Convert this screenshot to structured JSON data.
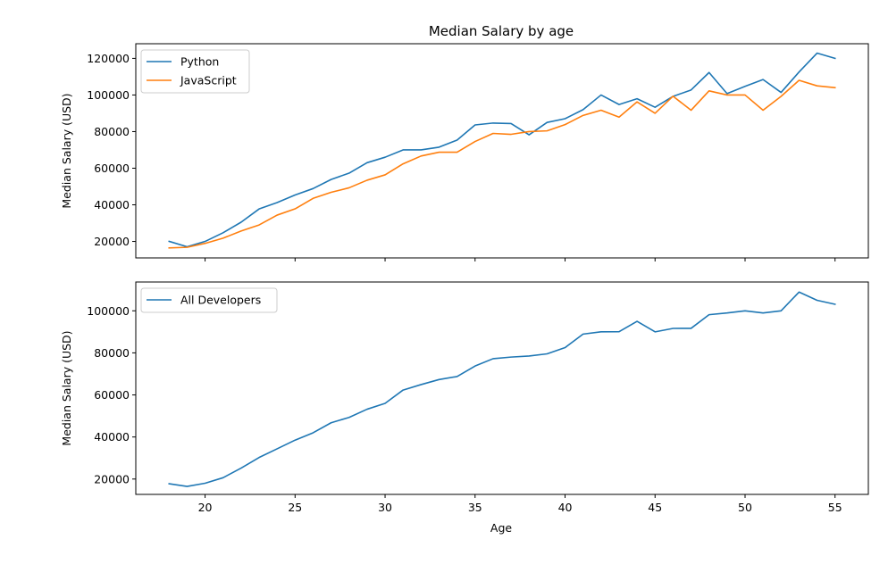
{
  "chart_data": [
    {
      "type": "line",
      "title": "Median Salary by age",
      "xlabel": "",
      "ylabel": "Median Salary (USD)",
      "xlim": [
        16.15,
        56.85
      ],
      "ylim": [
        11000,
        128000
      ],
      "xticks": [
        20,
        25,
        30,
        35,
        40,
        45,
        50,
        55
      ],
      "yticks": [
        20000,
        40000,
        60000,
        80000,
        100000,
        120000
      ],
      "show_x_tick_labels": false,
      "grid": false,
      "legend_position": "upper-left",
      "x": [
        18,
        19,
        20,
        21,
        22,
        23,
        24,
        25,
        26,
        27,
        28,
        29,
        30,
        31,
        32,
        33,
        34,
        35,
        36,
        37,
        38,
        39,
        40,
        41,
        42,
        43,
        44,
        45,
        46,
        47,
        48,
        49,
        50,
        51,
        52,
        53,
        54,
        55
      ],
      "series": [
        {
          "name": "Python",
          "color": "#1f77b4",
          "values": [
            20046,
            17100,
            20000,
            24744,
            30500,
            37732,
            41247,
            45372,
            48876,
            53850,
            57287,
            63016,
            65998,
            70003,
            70000,
            71496,
            75370,
            83640,
            84666,
            84392,
            78254,
            85000,
            87038,
            91991,
            100000,
            94796,
            97962,
            93302,
            99240,
            102736,
            112285,
            100771,
            104708,
            108423,
            101407,
            112542,
            122870,
            120000
          ]
        },
        {
          "name": "JavaScript",
          "color": "#ff7f0e",
          "values": [
            16446,
            16791,
            18942,
            21780,
            25704,
            29000,
            34372,
            37810,
            43515,
            46823,
            49293,
            53437,
            56373,
            62375,
            66674,
            68745,
            68746,
            74583,
            79000,
            78508,
            79996,
            80403,
            83820,
            88833,
            91660,
            87892,
            96243,
            90000,
            99313,
            91660,
            102264,
            100000,
            100000,
            91660,
            99240,
            108000,
            105000,
            104000
          ]
        }
      ]
    },
    {
      "type": "line",
      "title": "",
      "xlabel": "Age",
      "ylabel": "Median Salary (USD)",
      "xlim": [
        16.15,
        56.85
      ],
      "ylim": [
        12700,
        113700
      ],
      "xticks": [
        20,
        25,
        30,
        35,
        40,
        45,
        50,
        55
      ],
      "yticks": [
        20000,
        40000,
        60000,
        80000,
        100000
      ],
      "show_x_tick_labels": true,
      "grid": false,
      "legend_position": "upper-left",
      "x": [
        18,
        19,
        20,
        21,
        22,
        23,
        24,
        25,
        26,
        27,
        28,
        29,
        30,
        31,
        32,
        33,
        34,
        35,
        36,
        37,
        38,
        39,
        40,
        41,
        42,
        43,
        44,
        45,
        46,
        47,
        48,
        49,
        50,
        51,
        52,
        53,
        54,
        55
      ],
      "series": [
        {
          "name": "All Developers",
          "color": "#1f77b4",
          "values": [
            17784,
            16500,
            18012,
            20628,
            25206,
            30252,
            34368,
            38496,
            42000,
            46752,
            49320,
            53200,
            56000,
            62316,
            64928,
            67317,
            68748,
            73752,
            77232,
            78000,
            78508,
            79536,
            82488,
            88935,
            90000,
            90056,
            95000,
            90000,
            91633,
            91660,
            98150,
            98964,
            100000,
            98988,
            100000,
            108923,
            105000,
            103117
          ]
        }
      ]
    }
  ]
}
